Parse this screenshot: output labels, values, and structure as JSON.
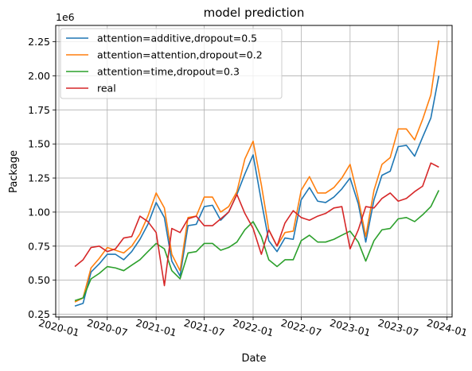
{
  "chart_data": {
    "type": "line",
    "title": "model prediction",
    "xlabel": "Date",
    "ylabel": "Package",
    "y_offset_label": "1e6",
    "x_type": "date",
    "xlim": [
      "2019-12-20",
      "2024-01-20"
    ],
    "ylim": [
      230000,
      2370000
    ],
    "x_ticks": [
      "2020-01-01",
      "2020-07-01",
      "2021-01-01",
      "2021-07-01",
      "2022-01-01",
      "2022-07-01",
      "2023-01-01",
      "2023-07-01",
      "2024-01-01"
    ],
    "x_tick_labels": [
      "2020-01",
      "2020-07",
      "2021-01",
      "2021-07",
      "2022-01",
      "2022-07",
      "2023-01",
      "2023-07",
      "2024-01"
    ],
    "y_ticks": [
      250000,
      500000,
      750000,
      1000000,
      1250000,
      1500000,
      1750000,
      2000000,
      2250000
    ],
    "y_tick_labels": [
      "0.25",
      "0.50",
      "0.75",
      "1.00",
      "1.25",
      "1.50",
      "1.75",
      "2.00",
      "2.25"
    ],
    "grid": true,
    "legend_position": "top-left",
    "x": [
      "2020-03-01",
      "2020-04-01",
      "2020-05-01",
      "2020-06-01",
      "2020-07-01",
      "2020-08-01",
      "2020-09-01",
      "2020-10-01",
      "2020-11-01",
      "2020-12-01",
      "2021-01-01",
      "2021-02-01",
      "2021-03-01",
      "2021-04-01",
      "2021-05-01",
      "2021-06-01",
      "2021-07-01",
      "2021-08-01",
      "2021-09-01",
      "2021-10-01",
      "2021-11-01",
      "2021-12-01",
      "2022-01-01",
      "2022-02-01",
      "2022-03-01",
      "2022-04-01",
      "2022-05-01",
      "2022-06-01",
      "2022-07-01",
      "2022-08-01",
      "2022-09-01",
      "2022-10-01",
      "2022-11-01",
      "2022-12-01",
      "2023-01-01",
      "2023-02-01",
      "2023-03-01",
      "2023-04-01",
      "2023-05-01",
      "2023-06-01",
      "2023-07-01",
      "2023-08-01",
      "2023-09-01",
      "2023-10-01",
      "2023-11-01",
      "2023-12-01"
    ],
    "series": [
      {
        "name": "attention=additive,dropout=0.5",
        "color": "#1f77b4",
        "values": [
          310000,
          330000,
          560000,
          620000,
          690000,
          690000,
          650000,
          710000,
          800000,
          910000,
          1070000,
          960000,
          640000,
          530000,
          900000,
          910000,
          1040000,
          1050000,
          940000,
          1000000,
          1130000,
          1280000,
          1420000,
          1080000,
          790000,
          710000,
          810000,
          800000,
          1090000,
          1180000,
          1080000,
          1070000,
          1110000,
          1170000,
          1250000,
          1060000,
          780000,
          1090000,
          1270000,
          1300000,
          1480000,
          1490000,
          1410000,
          1550000,
          1690000,
          2000000
        ]
      },
      {
        "name": "attention=attention,dropout=0.2",
        "color": "#ff7f0e",
        "values": [
          340000,
          370000,
          590000,
          660000,
          740000,
          720000,
          700000,
          750000,
          840000,
          970000,
          1140000,
          1030000,
          690000,
          570000,
          960000,
          970000,
          1110000,
          1110000,
          1000000,
          1040000,
          1150000,
          1390000,
          1520000,
          1200000,
          870000,
          750000,
          850000,
          860000,
          1160000,
          1260000,
          1140000,
          1140000,
          1180000,
          1250000,
          1350000,
          1100000,
          820000,
          1160000,
          1350000,
          1400000,
          1610000,
          1610000,
          1530000,
          1680000,
          1860000,
          2260000
        ]
      },
      {
        "name": "attention=time,dropout=0.3",
        "color": "#2ca02c",
        "values": [
          350000,
          370000,
          510000,
          550000,
          600000,
          590000,
          570000,
          610000,
          650000,
          710000,
          770000,
          730000,
          570000,
          510000,
          700000,
          710000,
          770000,
          770000,
          720000,
          740000,
          780000,
          870000,
          930000,
          820000,
          650000,
          600000,
          650000,
          650000,
          790000,
          830000,
          780000,
          780000,
          800000,
          830000,
          860000,
          780000,
          640000,
          790000,
          870000,
          880000,
          950000,
          960000,
          930000,
          980000,
          1040000,
          1160000
        ]
      },
      {
        "name": "real",
        "color": "#d62728",
        "values": [
          600000,
          650000,
          740000,
          750000,
          710000,
          730000,
          810000,
          820000,
          970000,
          930000,
          850000,
          460000,
          880000,
          850000,
          950000,
          970000,
          900000,
          900000,
          950000,
          1000000,
          1130000,
          990000,
          880000,
          690000,
          870000,
          750000,
          920000,
          1010000,
          960000,
          940000,
          970000,
          990000,
          1030000,
          1040000,
          730000,
          870000,
          1040000,
          1030000,
          1100000,
          1140000,
          1080000,
          1100000,
          1150000,
          1190000,
          1360000,
          1330000
        ]
      }
    ]
  }
}
